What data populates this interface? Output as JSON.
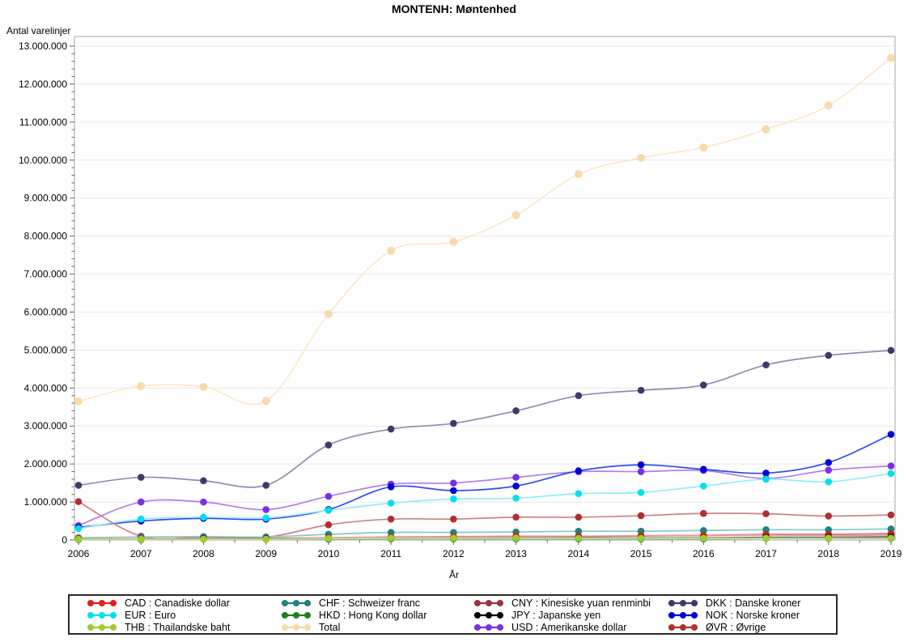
{
  "page_title": "MONTENH: Møntenhed",
  "chart_data": {
    "type": "line",
    "title": "MONTENH: Møntenhed",
    "xlabel": "År",
    "ylabel": "Antal varelinjer",
    "x": [
      2006,
      2007,
      2008,
      2009,
      2010,
      2011,
      2012,
      2013,
      2014,
      2015,
      2016,
      2017,
      2018,
      2019
    ],
    "ylim": [
      0,
      13000000
    ],
    "ytick_step": 1000000,
    "ytick_minor_step": 200000,
    "grid": true,
    "legend_position": "bottom",
    "number_format": "da-DK dotted thousands",
    "series": [
      {
        "key": "Total",
        "label": "Total",
        "marker_color": "#fad9ac",
        "line_color": "#fce7cb",
        "values": [
          3650000,
          4050000,
          4030000,
          3660000,
          5950000,
          7620000,
          7850000,
          8550000,
          9630000,
          10060000,
          10330000,
          10810000,
          11440000,
          12690000
        ]
      },
      {
        "key": "DKK",
        "label": "DKK : Danske kroner",
        "marker_color": "#3b3b6d",
        "line_color": "#8e8eac",
        "values": [
          1440000,
          1650000,
          1560000,
          1440000,
          2500000,
          2920000,
          3070000,
          3400000,
          3800000,
          3940000,
          4080000,
          4610000,
          4860000,
          4990000
        ]
      },
      {
        "key": "USD",
        "label": "USD : Amerikanske dollar",
        "marker_color": "#7b2fe8",
        "line_color": "#b47fe8",
        "values": [
          380000,
          1000000,
          1000000,
          800000,
          1150000,
          1470000,
          1500000,
          1650000,
          1800000,
          1800000,
          1830000,
          1620000,
          1840000,
          1950000
        ]
      },
      {
        "key": "NOK",
        "label": "NOK : Norske kroner",
        "marker_color": "#0000d8",
        "line_color": "#2f4bee",
        "values": [
          330000,
          500000,
          570000,
          550000,
          800000,
          1400000,
          1300000,
          1420000,
          1820000,
          1980000,
          1860000,
          1760000,
          2040000,
          2780000
        ]
      },
      {
        "key": "EUR",
        "label": "EUR : Euro",
        "marker_color": "#00e0ee",
        "line_color": "#8deef5",
        "values": [
          300000,
          550000,
          600000,
          580000,
          780000,
          970000,
          1080000,
          1100000,
          1220000,
          1250000,
          1420000,
          1600000,
          1530000,
          1750000
        ]
      },
      {
        "key": "ØVR",
        "label": "ØVR : Øvrige",
        "marker_color": "#b03030",
        "line_color": "#cc8585",
        "values": [
          1010000,
          100000,
          80000,
          70000,
          400000,
          550000,
          550000,
          600000,
          600000,
          640000,
          700000,
          690000,
          630000,
          660000
        ]
      },
      {
        "key": "CHF",
        "label": "CHF : Schweizer franc",
        "marker_color": "#20807f",
        "line_color": "#8fc5c4",
        "values": [
          60000,
          80000,
          90000,
          80000,
          150000,
          200000,
          200000,
          210000,
          230000,
          230000,
          250000,
          270000,
          270000,
          290000
        ]
      },
      {
        "key": "CNY",
        "label": "CNY : Kinesiske yuan renminbi",
        "marker_color": "#993344",
        "line_color": "#c4848e",
        "values": [
          20000,
          20000,
          30000,
          30000,
          50000,
          70000,
          80000,
          80000,
          90000,
          110000,
          120000,
          150000,
          150000,
          170000
        ]
      },
      {
        "key": "CAD",
        "label": "CAD : Canadiske dollar",
        "marker_color": "#e01f1f",
        "line_color": "#ee8f8f",
        "values": [
          30000,
          30000,
          40000,
          40000,
          60000,
          80000,
          90000,
          100000,
          100000,
          110000,
          120000,
          130000,
          120000,
          130000
        ]
      },
      {
        "key": "JPY",
        "label": "JPY : Japanske yen",
        "marker_color": "#000000",
        "line_color": "#333333",
        "values": [
          20000,
          20000,
          30000,
          30000,
          40000,
          50000,
          50000,
          50000,
          60000,
          60000,
          60000,
          70000,
          70000,
          80000
        ]
      },
      {
        "key": "HKD",
        "label": "HKD : Hong Kong dollar",
        "marker_color": "#208020",
        "line_color": "#8fc58f",
        "values": [
          10000,
          10000,
          20000,
          20000,
          20000,
          30000,
          30000,
          30000,
          30000,
          30000,
          30000,
          40000,
          40000,
          40000
        ]
      },
      {
        "key": "THB",
        "label": "THB : Thailandske baht",
        "marker_color": "#a2cb2f",
        "line_color": "#cade90",
        "values": [
          20000,
          20000,
          20000,
          20000,
          40000,
          50000,
          50000,
          50000,
          50000,
          50000,
          50000,
          50000,
          50000,
          50000
        ]
      }
    ],
    "legend_columns": [
      [
        "CAD",
        "EUR",
        "THB"
      ],
      [
        "CHF",
        "HKD",
        "Total"
      ],
      [
        "CNY",
        "JPY",
        "USD"
      ],
      [
        "DKK",
        "NOK",
        "ØVR"
      ]
    ]
  }
}
